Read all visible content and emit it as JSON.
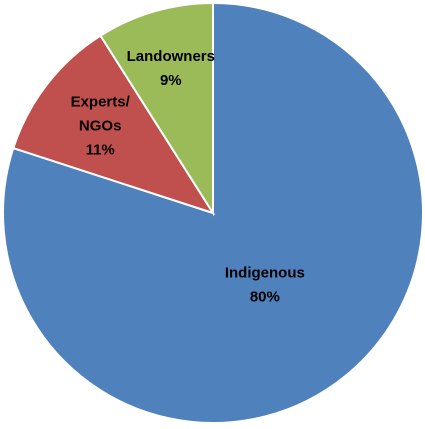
{
  "chart_data": {
    "type": "pie",
    "title": "",
    "start_angle_deg": 0,
    "direction": "clockwise",
    "slices": [
      {
        "label_lines": [
          "Indigenous"
        ],
        "percent_label": "80%",
        "value": 80,
        "color": "#4f81bd"
      },
      {
        "label_lines": [
          "Experts/",
          "NGOs"
        ],
        "percent_label": "11%",
        "value": 11,
        "color": "#c0504d"
      },
      {
        "label_lines": [
          "Landowners"
        ],
        "percent_label": "9%",
        "value": 9,
        "color": "#9bbb59"
      }
    ]
  }
}
